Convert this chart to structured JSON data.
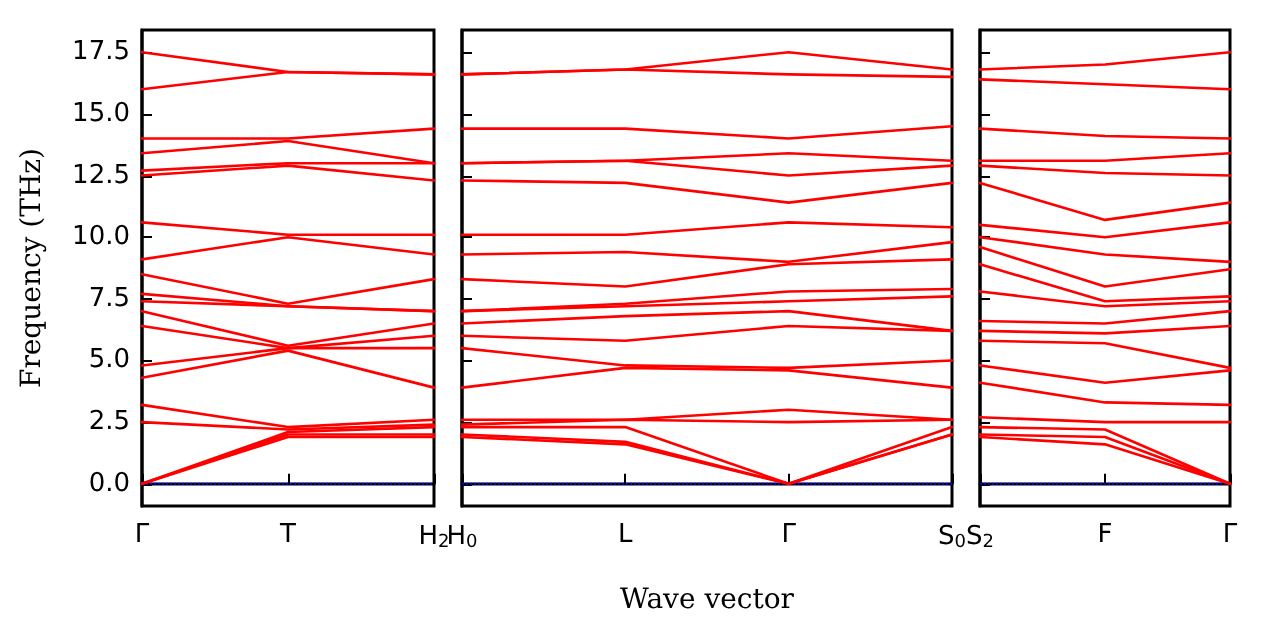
{
  "chart_data": [
    {
      "type": "line",
      "ylabel": "Frequency (THz)",
      "categories": [
        "Γ",
        "T",
        "H$_{2}$"
      ],
      "ylim": [
        -0.9,
        18.4
      ],
      "yticks": [
        {
          "value": 0,
          "label": "0.0"
        },
        {
          "value": 2.5,
          "label": "2.5"
        },
        {
          "value": 5,
          "label": "5.0"
        },
        {
          "value": 7.5,
          "label": "7.5"
        },
        {
          "value": 10,
          "label": "10.0"
        },
        {
          "value": 12.5,
          "label": "12.5"
        },
        {
          "value": 15,
          "label": "15.0"
        },
        {
          "value": 17.5,
          "label": "17.5"
        }
      ],
      "grid": false,
      "marker": "none",
      "ref_lines": [
        {
          "axis": "y",
          "value": 0,
          "color": "#0000ff",
          "line_style": "dotted"
        }
      ],
      "series": [
        {
          "color": "#ff0000",
          "values": [
            0,
            1.9,
            1.9
          ]
        },
        {
          "color": "#ff0000",
          "values": [
            0,
            2.0,
            2.0
          ]
        },
        {
          "color": "#ff0000",
          "values": [
            0,
            2.1,
            2.3
          ]
        },
        {
          "color": "#ff0000",
          "values": [
            2.5,
            2.2,
            2.4
          ]
        },
        {
          "color": "#ff0000",
          "values": [
            3.2,
            2.3,
            2.6
          ]
        },
        {
          "color": "#ff0000",
          "values": [
            4.3,
            5.4,
            3.9
          ]
        },
        {
          "color": "#ff0000",
          "values": [
            4.8,
            5.5,
            5.5
          ]
        },
        {
          "color": "#ff0000",
          "values": [
            6.4,
            5.5,
            6.0
          ]
        },
        {
          "color": "#ff0000",
          "values": [
            7.0,
            5.6,
            6.5
          ]
        },
        {
          "color": "#ff0000",
          "values": [
            7.4,
            7.2,
            7.0
          ]
        },
        {
          "color": "#ff0000",
          "values": [
            7.7,
            7.2,
            7.0
          ]
        },
        {
          "color": "#ff0000",
          "values": [
            8.5,
            7.3,
            8.3
          ]
        },
        {
          "color": "#ff0000",
          "values": [
            9.1,
            10.0,
            9.3
          ]
        },
        {
          "color": "#ff0000",
          "values": [
            10.6,
            10.1,
            10.1
          ]
        },
        {
          "color": "#ff0000",
          "values": [
            12.5,
            12.9,
            12.3
          ]
        },
        {
          "color": "#ff0000",
          "values": [
            12.7,
            13.0,
            13.0
          ]
        },
        {
          "color": "#ff0000",
          "values": [
            13.4,
            13.9,
            13.0
          ]
        },
        {
          "color": "#ff0000",
          "values": [
            14.0,
            14.0,
            14.4
          ]
        },
        {
          "color": "#ff0000",
          "values": [
            16.0,
            16.7,
            16.6
          ]
        },
        {
          "color": "#ff0000",
          "values": [
            17.5,
            16.7,
            16.6
          ]
        }
      ]
    },
    {
      "type": "line",
      "xlabel": "Wave vector",
      "categories": [
        "H$_{0}$",
        "L",
        "Γ",
        "S$_{0}$"
      ],
      "ylim": [
        -0.9,
        18.4
      ],
      "yticks": [
        {
          "value": 0,
          "label": null
        },
        {
          "value": 2.5,
          "label": null
        },
        {
          "value": 5,
          "label": null
        },
        {
          "value": 7.5,
          "label": null
        },
        {
          "value": 10,
          "label": null
        },
        {
          "value": 12.5,
          "label": null
        },
        {
          "value": 15,
          "label": null
        },
        {
          "value": 17.5,
          "label": null
        }
      ],
      "tick_labels": "x",
      "grid": false,
      "marker": "none",
      "ref_lines": [
        {
          "axis": "y",
          "value": 0,
          "color": "#0000ff",
          "line_style": "dotted"
        }
      ],
      "series": [
        {
          "color": "#ff0000",
          "values": [
            1.9,
            1.6,
            0,
            2.0
          ]
        },
        {
          "color": "#ff0000",
          "values": [
            2.0,
            1.7,
            0,
            2.0
          ]
        },
        {
          "color": "#ff0000",
          "values": [
            2.3,
            2.3,
            0,
            2.3
          ]
        },
        {
          "color": "#ff0000",
          "values": [
            2.4,
            2.6,
            2.5,
            2.6
          ]
        },
        {
          "color": "#ff0000",
          "values": [
            2.6,
            2.6,
            3.0,
            2.6
          ]
        },
        {
          "color": "#ff0000",
          "values": [
            3.9,
            4.7,
            4.6,
            3.9
          ]
        },
        {
          "color": "#ff0000",
          "values": [
            5.5,
            4.8,
            4.7,
            5.0
          ]
        },
        {
          "color": "#ff0000",
          "values": [
            6.0,
            5.8,
            6.4,
            6.2
          ]
        },
        {
          "color": "#ff0000",
          "values": [
            6.5,
            6.8,
            7.0,
            6.2
          ]
        },
        {
          "color": "#ff0000",
          "values": [
            7.0,
            7.2,
            7.4,
            7.6
          ]
        },
        {
          "color": "#ff0000",
          "values": [
            7.0,
            7.3,
            7.8,
            7.9
          ]
        },
        {
          "color": "#ff0000",
          "values": [
            8.3,
            8.0,
            8.9,
            9.1
          ]
        },
        {
          "color": "#ff0000",
          "values": [
            9.3,
            9.4,
            9.0,
            9.8
          ]
        },
        {
          "color": "#ff0000",
          "values": [
            10.1,
            10.1,
            10.6,
            10.4
          ]
        },
        {
          "color": "#ff0000",
          "values": [
            12.3,
            12.2,
            11.4,
            12.2
          ]
        },
        {
          "color": "#ff0000",
          "values": [
            13.0,
            13.1,
            12.5,
            12.9
          ]
        },
        {
          "color": "#ff0000",
          "values": [
            13.0,
            13.1,
            13.4,
            13.1
          ]
        },
        {
          "color": "#ff0000",
          "values": [
            14.4,
            14.4,
            14.0,
            14.5
          ]
        },
        {
          "color": "#ff0000",
          "values": [
            16.6,
            16.8,
            16.6,
            16.5
          ]
        },
        {
          "color": "#ff0000",
          "values": [
            16.6,
            16.8,
            17.5,
            16.8
          ]
        }
      ]
    },
    {
      "type": "line",
      "categories": [
        "S$_{2}$",
        "F",
        "Γ"
      ],
      "ylim": [
        -0.9,
        18.4
      ],
      "yticks": [
        {
          "value": 0,
          "label": null
        },
        {
          "value": 2.5,
          "label": null
        },
        {
          "value": 5,
          "label": null
        },
        {
          "value": 7.5,
          "label": null
        },
        {
          "value": 10,
          "label": null
        },
        {
          "value": 12.5,
          "label": null
        },
        {
          "value": 15,
          "label": null
        },
        {
          "value": 17.5,
          "label": null
        }
      ],
      "tick_labels": "x",
      "grid": false,
      "marker": "none",
      "ref_lines": [
        {
          "axis": "y",
          "value": 0,
          "color": "#0000ff",
          "line_style": "dotted"
        }
      ],
      "series": [
        {
          "color": "#ff0000",
          "values": [
            1.9,
            1.6,
            0
          ]
        },
        {
          "color": "#ff0000",
          "values": [
            2.0,
            1.9,
            0
          ]
        },
        {
          "color": "#ff0000",
          "values": [
            2.3,
            2.2,
            0
          ]
        },
        {
          "color": "#ff0000",
          "values": [
            2.7,
            2.5,
            2.5
          ]
        },
        {
          "color": "#ff0000",
          "values": [
            4.1,
            3.3,
            3.2
          ]
        },
        {
          "color": "#ff0000",
          "values": [
            4.8,
            4.1,
            4.6
          ]
        },
        {
          "color": "#ff0000",
          "values": [
            5.8,
            5.7,
            4.7
          ]
        },
        {
          "color": "#ff0000",
          "values": [
            6.2,
            6.1,
            6.4
          ]
        },
        {
          "color": "#ff0000",
          "values": [
            6.6,
            6.5,
            7.0
          ]
        },
        {
          "color": "#ff0000",
          "values": [
            7.8,
            7.2,
            7.4
          ]
        },
        {
          "color": "#ff0000",
          "values": [
            8.9,
            7.4,
            7.6
          ]
        },
        {
          "color": "#ff0000",
          "values": [
            9.6,
            8.0,
            8.7
          ]
        },
        {
          "color": "#ff0000",
          "values": [
            10.0,
            9.3,
            9.0
          ]
        },
        {
          "color": "#ff0000",
          "values": [
            10.5,
            10.0,
            10.6
          ]
        },
        {
          "color": "#ff0000",
          "values": [
            12.2,
            10.7,
            11.4
          ]
        },
        {
          "color": "#ff0000",
          "values": [
            12.9,
            12.6,
            12.5
          ]
        },
        {
          "color": "#ff0000",
          "values": [
            13.1,
            13.1,
            13.4
          ]
        },
        {
          "color": "#ff0000",
          "values": [
            14.4,
            14.1,
            14.0
          ]
        },
        {
          "color": "#ff0000",
          "values": [
            16.4,
            16.2,
            16.0
          ]
        },
        {
          "color": "#ff0000",
          "values": [
            16.8,
            17.0,
            17.5
          ]
        }
      ]
    }
  ]
}
